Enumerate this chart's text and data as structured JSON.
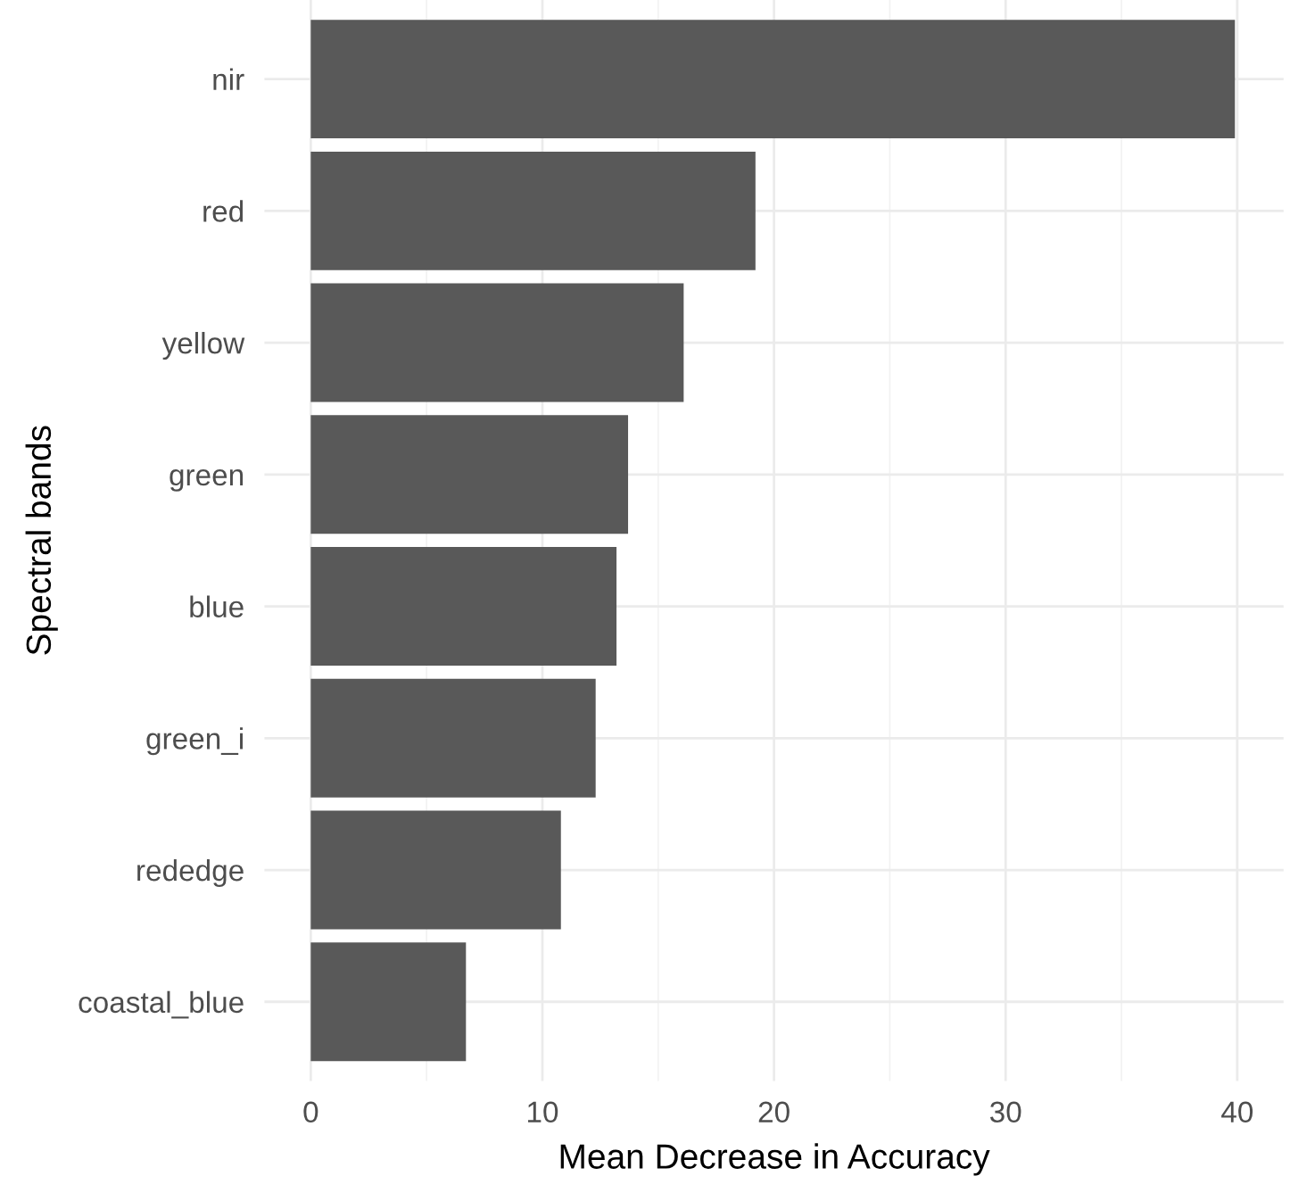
{
  "chart_data": {
    "type": "bar",
    "orientation": "horizontal",
    "xlabel": "Mean Decrease in Accuracy",
    "ylabel": "Spectral bands",
    "categories": [
      "nir",
      "red",
      "yellow",
      "green",
      "blue",
      "green_i",
      "rededge",
      "coastal_blue"
    ],
    "values": [
      39.9,
      19.2,
      16.1,
      13.7,
      13.2,
      12.3,
      10.8,
      6.7
    ],
    "color": "#595959",
    "xlim": [
      -2,
      42
    ],
    "xticks": [
      0,
      10,
      20,
      30,
      40
    ],
    "grid": true
  }
}
